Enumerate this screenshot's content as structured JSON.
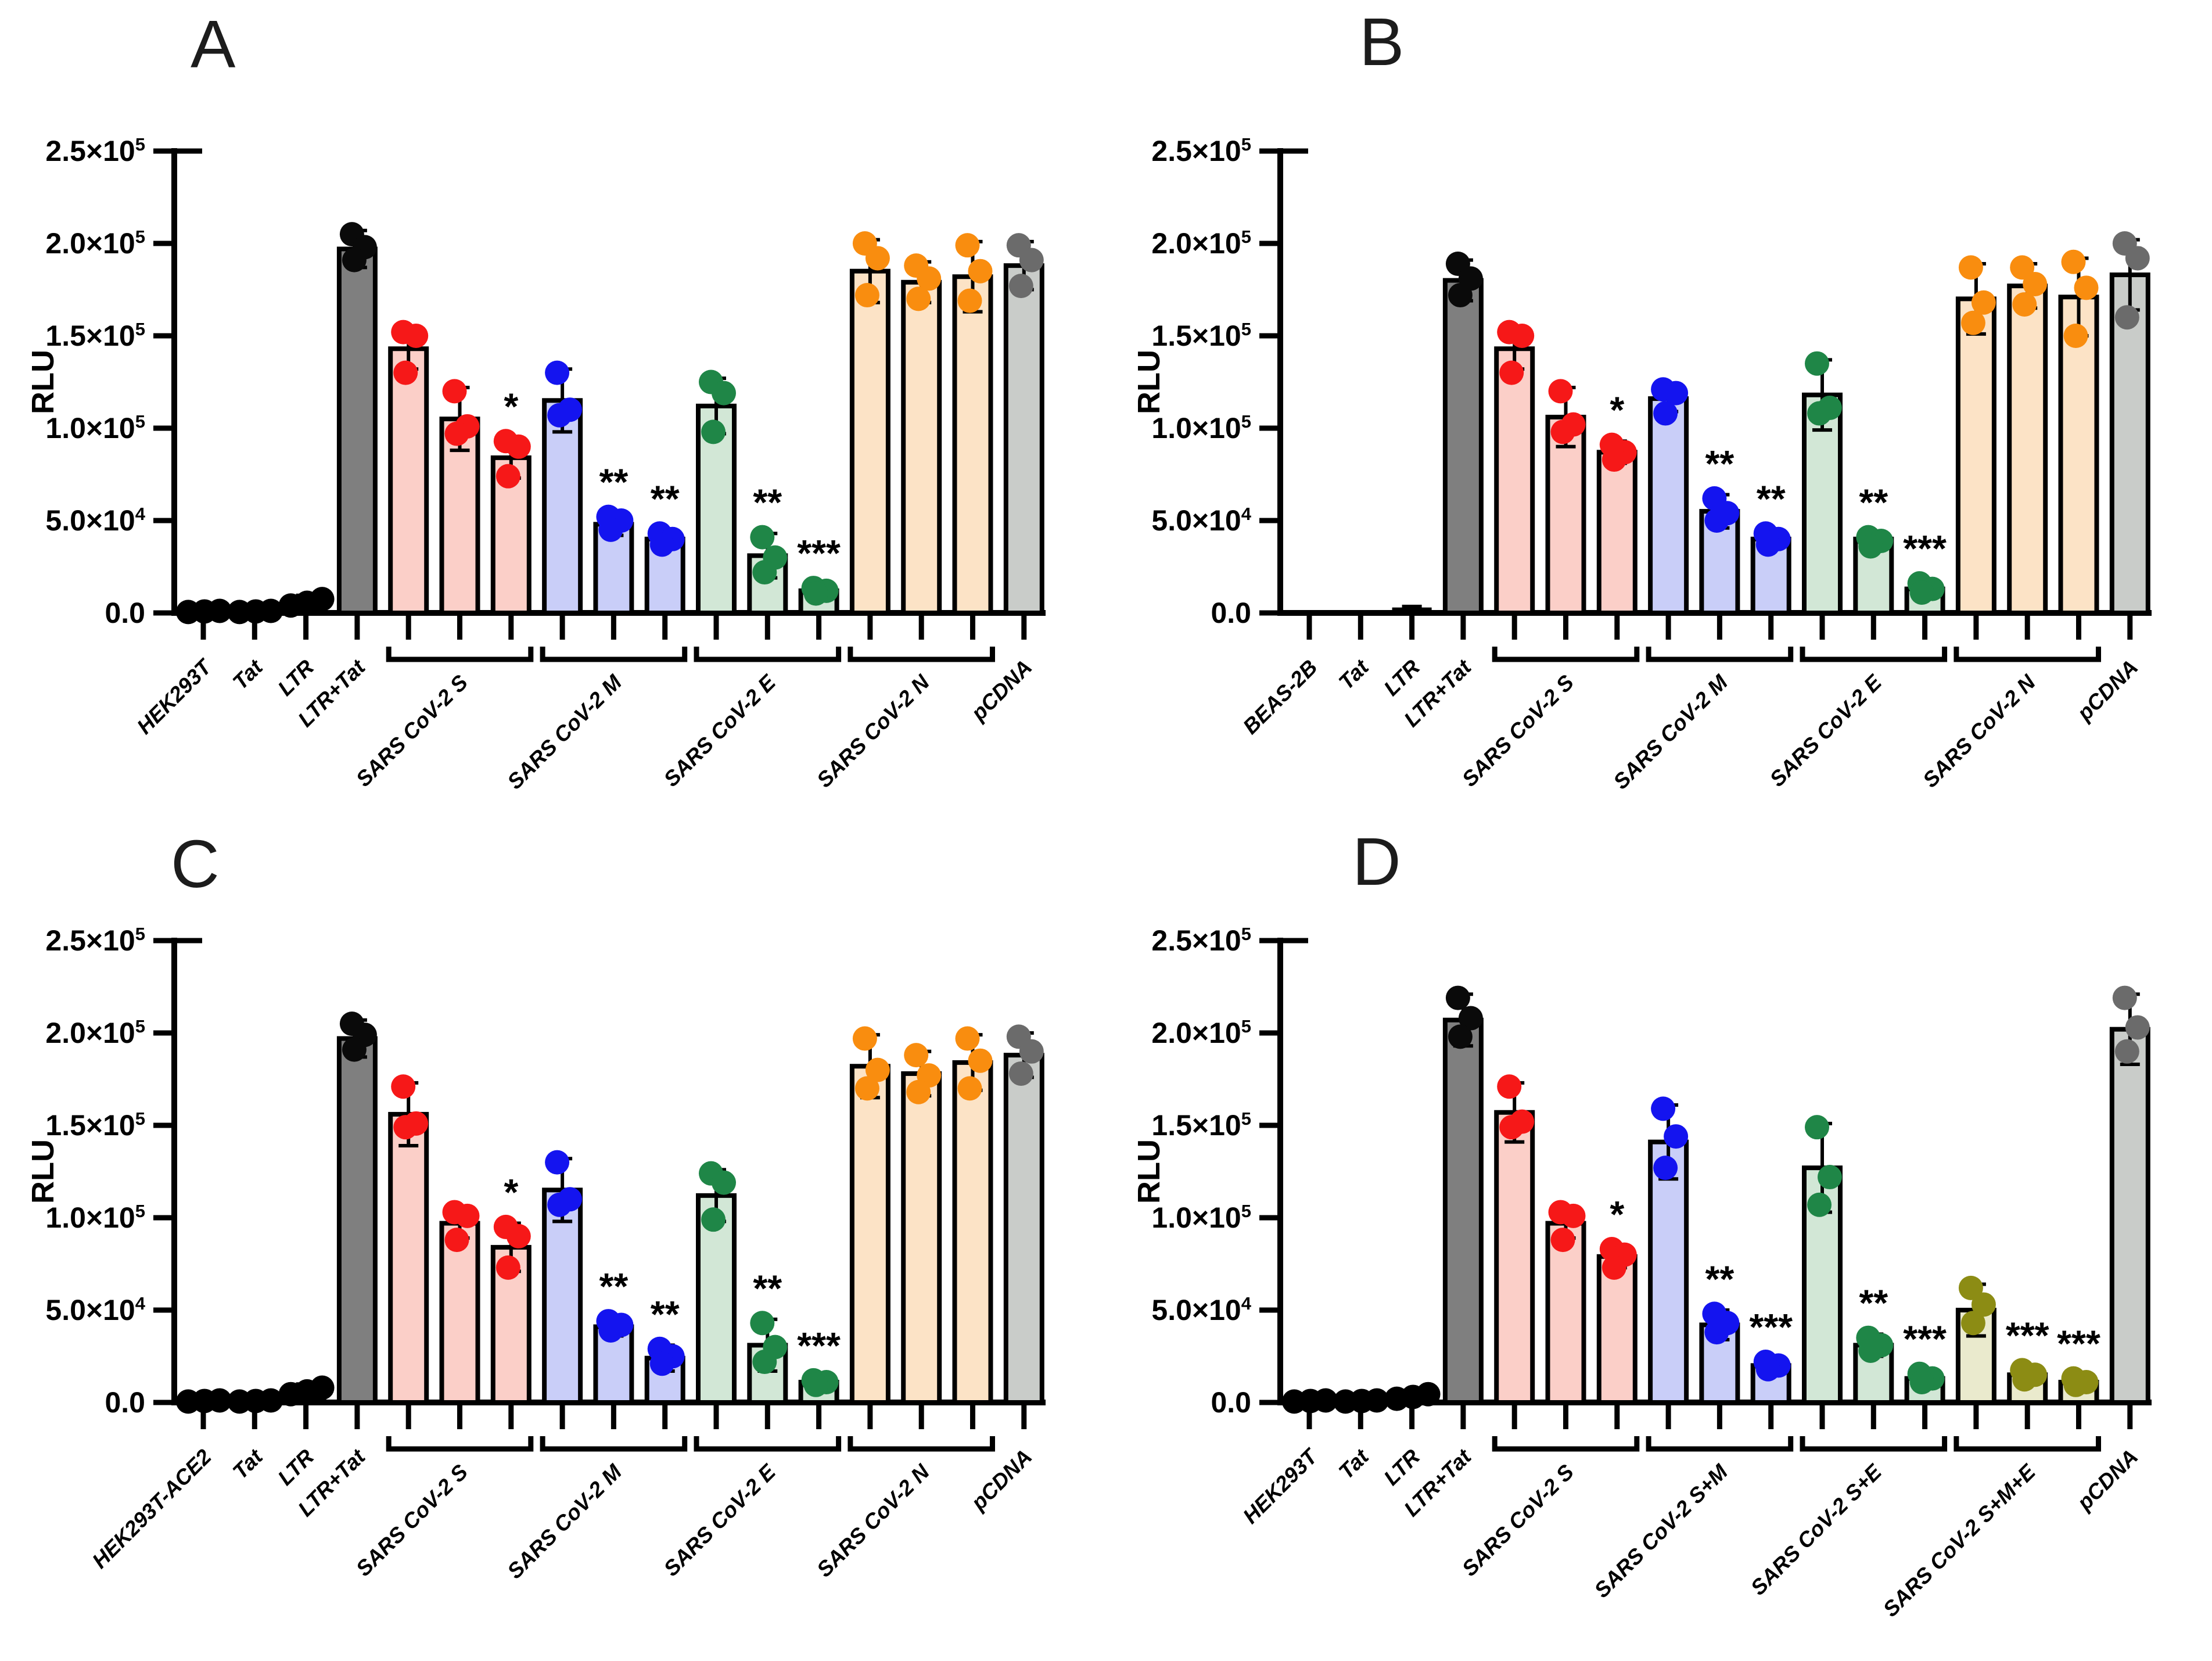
{
  "figure": {
    "background": "#FFFFFF",
    "type": "four-panel-bar-figure"
  },
  "palette": {
    "black": {
      "fill": "#000000",
      "dot": "#000000"
    },
    "darkgray": {
      "fill": "#7F7F7F",
      "dot": "#0A0A0A"
    },
    "pink": {
      "fill": "#FBCFC8",
      "dot": "#F61818"
    },
    "blue": {
      "fill": "#C9CEF8",
      "dot": "#1414EF"
    },
    "green": {
      "fill": "#D2E7D6",
      "dot": "#1F8647"
    },
    "orange": {
      "fill": "#FCE3C6",
      "dot": "#F98D0F"
    },
    "olive": {
      "fill": "#EAEACD",
      "dot": "#8C8C14"
    },
    "gray": {
      "fill": "#C9CCC9",
      "dot": "#6B6B6B"
    }
  },
  "chart_data": [
    {
      "type": "bar",
      "panel": "A",
      "ylabel": "RLU",
      "ylim": [
        0,
        250000
      ],
      "yticks": [
        0,
        50000,
        100000,
        150000,
        200000,
        250000
      ],
      "ytick_labels": [
        "0.0",
        "5.0×10⁴",
        "1.0×10⁵",
        "1.5×10⁵",
        "2.0×10⁵",
        "2.5×10⁵"
      ],
      "legend": "none",
      "grid": "off",
      "groups": [
        {
          "label": "HEK293T",
          "bars": [
            {
              "color": "black",
              "value": 800,
              "dots": [
                500,
                800,
                1100
              ],
              "jitter": "h"
            }
          ]
        },
        {
          "label": "Tat",
          "bars": [
            {
              "color": "black",
              "value": 800,
              "dots": [
                500,
                800,
                1100
              ],
              "jitter": "h"
            }
          ]
        },
        {
          "label": "LTR",
          "bars": [
            {
              "color": "black",
              "value": 5500,
              "dots": [
                4000,
                5500,
                7500
              ],
              "jitter": "h"
            }
          ]
        },
        {
          "label": "LTR+Tat",
          "bars": [
            {
              "color": "darkgray",
              "value": 197000,
              "dots": [
                205000,
                198000,
                191000
              ]
            }
          ]
        },
        {
          "label": "SARS CoV-2 S",
          "bars": [
            {
              "color": "pink",
              "value": 143000,
              "dots": [
                152000,
                150000,
                130000
              ]
            },
            {
              "color": "pink",
              "value": 105000,
              "dots": [
                120000,
                101000,
                97000
              ]
            },
            {
              "color": "pink",
              "value": 84000,
              "dots": [
                93000,
                90000,
                74000
              ],
              "sig": "*"
            }
          ]
        },
        {
          "label": "SARS CoV-2 M",
          "bars": [
            {
              "color": "blue",
              "value": 115000,
              "dots": [
                130000,
                110000,
                107000
              ]
            },
            {
              "color": "blue",
              "value": 48000,
              "dots": [
                52000,
                50000,
                45000
              ],
              "sig": "**"
            },
            {
              "color": "blue",
              "value": 40000,
              "dots": [
                43000,
                40000,
                37000
              ],
              "sig": "**"
            }
          ]
        },
        {
          "label": "SARS CoV-2 E",
          "bars": [
            {
              "color": "green",
              "value": 112000,
              "dots": [
                125000,
                119000,
                98000
              ]
            },
            {
              "color": "green",
              "value": 31000,
              "dots": [
                41000,
                30000,
                22000
              ],
              "sig": "**"
            },
            {
              "color": "green",
              "value": 12000,
              "dots": [
                13500,
                12000,
                10500
              ],
              "sig": "***"
            }
          ]
        },
        {
          "label": "SARS CoV-2 N",
          "bars": [
            {
              "color": "orange",
              "value": 185000,
              "dots": [
                200000,
                192000,
                172000
              ]
            },
            {
              "color": "orange",
              "value": 179000,
              "dots": [
                188000,
                181000,
                170000
              ]
            },
            {
              "color": "orange",
              "value": 182000,
              "dots": [
                199000,
                185000,
                169000
              ]
            }
          ]
        },
        {
          "label": "pCDNA",
          "bars": [
            {
              "color": "gray",
              "value": 188000,
              "dots": [
                199000,
                191000,
                177000
              ]
            }
          ]
        }
      ]
    },
    {
      "type": "bar",
      "panel": "B",
      "ylabel": "RLU",
      "ylim": [
        0,
        250000
      ],
      "yticks": [
        0,
        50000,
        100000,
        150000,
        200000,
        250000
      ],
      "ytick_labels": [
        "0.0",
        "5.0×10⁴",
        "1.0×10⁵",
        "1.5×10⁵",
        "2.0×10⁵",
        "2.5×10⁵"
      ],
      "legend": "none",
      "grid": "off",
      "groups": [
        {
          "label": "BEAS-2B",
          "bars": [
            {
              "color": "black",
              "value": 0,
              "dots": []
            }
          ]
        },
        {
          "label": "Tat",
          "bars": [
            {
              "color": "black",
              "value": 0,
              "dots": []
            }
          ]
        },
        {
          "label": "LTR",
          "bars": [
            {
              "color": "black",
              "value": 2000,
              "dots": [],
              "err": 1500
            }
          ]
        },
        {
          "label": "LTR+Tat",
          "bars": [
            {
              "color": "darkgray",
              "value": 180000,
              "dots": [
                189000,
                181000,
                172000
              ]
            }
          ]
        },
        {
          "label": "SARS CoV-2 S",
          "bars": [
            {
              "color": "pink",
              "value": 143000,
              "dots": [
                152000,
                150000,
                130000
              ]
            },
            {
              "color": "pink",
              "value": 106000,
              "dots": [
                120000,
                102000,
                98000
              ]
            },
            {
              "color": "pink",
              "value": 87000,
              "dots": [
                91000,
                87000,
                83000
              ],
              "sig": "*"
            }
          ]
        },
        {
          "label": "SARS CoV-2 M",
          "bars": [
            {
              "color": "blue",
              "value": 116000,
              "dots": [
                121000,
                119000,
                108000
              ]
            },
            {
              "color": "blue",
              "value": 55000,
              "dots": [
                62000,
                54000,
                50000
              ],
              "sig": "**"
            },
            {
              "color": "blue",
              "value": 40000,
              "dots": [
                43000,
                40000,
                37000
              ],
              "sig": "**"
            }
          ]
        },
        {
          "label": "SARS CoV-2 E",
          "bars": [
            {
              "color": "green",
              "value": 118000,
              "dots": [
                135000,
                111000,
                108000
              ]
            },
            {
              "color": "green",
              "value": 40000,
              "dots": [
                41000,
                39000,
                36000
              ],
              "sig": "**"
            },
            {
              "color": "green",
              "value": 13000,
              "dots": [
                16000,
                13000,
                11000
              ],
              "sig": "***"
            }
          ]
        },
        {
          "label": "SARS CoV-2 N",
          "bars": [
            {
              "color": "orange",
              "value": 170000,
              "dots": [
                187000,
                168000,
                157000
              ]
            },
            {
              "color": "orange",
              "value": 177000,
              "dots": [
                187000,
                178000,
                167000
              ]
            },
            {
              "color": "orange",
              "value": 171000,
              "dots": [
                190000,
                176000,
                150000
              ]
            }
          ]
        },
        {
          "label": "pCDNA",
          "bars": [
            {
              "color": "gray",
              "value": 183000,
              "dots": [
                200000,
                192000,
                160000
              ]
            }
          ]
        }
      ]
    },
    {
      "type": "bar",
      "panel": "C",
      "ylabel": "RLU",
      "ylim": [
        0,
        250000
      ],
      "yticks": [
        0,
        50000,
        100000,
        150000,
        200000,
        250000
      ],
      "ytick_labels": [
        "0.0",
        "5.0×10⁴",
        "1.0×10⁵",
        "1.5×10⁵",
        "2.0×10⁵",
        "2.5×10⁵"
      ],
      "legend": "none",
      "grid": "off",
      "groups": [
        {
          "label": "HEK293T-ACE2",
          "bars": [
            {
              "color": "black",
              "value": 800,
              "dots": [
                500,
                800,
                1100
              ],
              "jitter": "h"
            }
          ]
        },
        {
          "label": "Tat",
          "bars": [
            {
              "color": "black",
              "value": 800,
              "dots": [
                500,
                800,
                1100
              ],
              "jitter": "h"
            }
          ]
        },
        {
          "label": "LTR",
          "bars": [
            {
              "color": "black",
              "value": 6000,
              "dots": [
                4500,
                6000,
                8000
              ],
              "jitter": "h"
            }
          ]
        },
        {
          "label": "LTR+Tat",
          "bars": [
            {
              "color": "darkgray",
              "value": 197000,
              "dots": [
                205000,
                199000,
                191000
              ]
            }
          ]
        },
        {
          "label": "SARS CoV-2 S",
          "bars": [
            {
              "color": "pink",
              "value": 156000,
              "dots": [
                171000,
                151000,
                149000
              ]
            },
            {
              "color": "pink",
              "value": 97000,
              "dots": [
                103000,
                101000,
                88000
              ]
            },
            {
              "color": "pink",
              "value": 84000,
              "dots": [
                95000,
                90000,
                73000
              ],
              "sig": "*"
            }
          ]
        },
        {
          "label": "SARS CoV-2 M",
          "bars": [
            {
              "color": "blue",
              "value": 115000,
              "dots": [
                130000,
                110000,
                107000
              ]
            },
            {
              "color": "blue",
              "value": 41000,
              "dots": [
                44000,
                42000,
                39000
              ],
              "sig": "**"
            },
            {
              "color": "blue",
              "value": 24000,
              "dots": [
                29000,
                25000,
                21000
              ],
              "sig": "**"
            }
          ]
        },
        {
          "label": "SARS CoV-2 E",
          "bars": [
            {
              "color": "green",
              "value": 112000,
              "dots": [
                124000,
                119000,
                99000
              ]
            },
            {
              "color": "green",
              "value": 31000,
              "dots": [
                43000,
                30000,
                22000
              ],
              "sig": "**"
            },
            {
              "color": "green",
              "value": 11000,
              "dots": [
                12000,
                11000,
                9500
              ],
              "sig": "***"
            }
          ]
        },
        {
          "label": "SARS CoV-2 N",
          "bars": [
            {
              "color": "orange",
              "value": 182000,
              "dots": [
                197000,
                180000,
                170000
              ]
            },
            {
              "color": "orange",
              "value": 178000,
              "dots": [
                188000,
                177000,
                168000
              ]
            },
            {
              "color": "orange",
              "value": 184000,
              "dots": [
                197000,
                185000,
                170000
              ]
            }
          ]
        },
        {
          "label": "pCDNA",
          "bars": [
            {
              "color": "gray",
              "value": 188000,
              "dots": [
                198000,
                190000,
                178000
              ]
            }
          ]
        }
      ]
    },
    {
      "type": "bar",
      "panel": "D",
      "ylabel": "RLU",
      "ylim": [
        0,
        250000
      ],
      "yticks": [
        0,
        50000,
        100000,
        150000,
        200000,
        250000
      ],
      "ytick_labels": [
        "0.0",
        "5.0×10⁴",
        "1.0×10⁵",
        "1.5×10⁵",
        "2.0×10⁵",
        "2.5×10⁵"
      ],
      "legend": "none",
      "grid": "off",
      "groups": [
        {
          "label": "HEK293T",
          "bars": [
            {
              "color": "black",
              "value": 800,
              "dots": [
                500,
                800,
                1100
              ],
              "jitter": "h"
            }
          ]
        },
        {
          "label": "Tat",
          "bars": [
            {
              "color": "black",
              "value": 800,
              "dots": [
                500,
                800,
                1100
              ],
              "jitter": "h"
            }
          ]
        },
        {
          "label": "LTR",
          "bars": [
            {
              "color": "black",
              "value": 3000,
              "dots": [
                2000,
                3000,
                4500
              ],
              "jitter": "h"
            }
          ]
        },
        {
          "label": "LTR+Tat",
          "bars": [
            {
              "color": "darkgray",
              "value": 207000,
              "dots": [
                219000,
                208000,
                198000
              ]
            }
          ]
        },
        {
          "label": "SARS CoV-2 S",
          "bars": [
            {
              "color": "pink",
              "value": 157000,
              "dots": [
                171000,
                152000,
                149000
              ]
            },
            {
              "color": "pink",
              "value": 97000,
              "dots": [
                103000,
                101000,
                88000
              ]
            },
            {
              "color": "pink",
              "value": 79000,
              "dots": [
                83000,
                80000,
                73000
              ],
              "sig": "*"
            }
          ]
        },
        {
          "label": "SARS CoV-2 S+M",
          "bars": [
            {
              "color": "blue",
              "value": 141000,
              "dots": [
                159000,
                144000,
                127000
              ]
            },
            {
              "color": "blue",
              "value": 42000,
              "dots": [
                48000,
                43000,
                38000
              ],
              "sig": "**"
            },
            {
              "color": "blue",
              "value": 20000,
              "dots": [
                22000,
                20000,
                18000
              ],
              "sig": "***"
            }
          ]
        },
        {
          "label": "SARS CoV-2 S+E",
          "bars": [
            {
              "color": "green",
              "value": 127000,
              "dots": [
                149000,
                122000,
                107000
              ]
            },
            {
              "color": "green",
              "value": 31000,
              "dots": [
                35000,
                31000,
                28000
              ],
              "sig": "**"
            },
            {
              "color": "green",
              "value": 13000,
              "dots": [
                15500,
                13000,
                11000
              ],
              "sig": "***"
            }
          ]
        },
        {
          "label": "SARS CoV-2 S+M+E",
          "bars": [
            {
              "color": "olive",
              "value": 50000,
              "dots": [
                62000,
                53000,
                43000
              ]
            },
            {
              "color": "olive",
              "value": 15000,
              "dots": [
                17500,
                15000,
                12500
              ],
              "sig": "***"
            },
            {
              "color": "olive",
              "value": 11000,
              "dots": [
                13000,
                11000,
                9500
              ],
              "sig": "***"
            }
          ]
        },
        {
          "label": "pCDNA",
          "bars": [
            {
              "color": "gray",
              "value": 202000,
              "dots": [
                219000,
                203000,
                190000
              ]
            }
          ]
        }
      ]
    }
  ]
}
